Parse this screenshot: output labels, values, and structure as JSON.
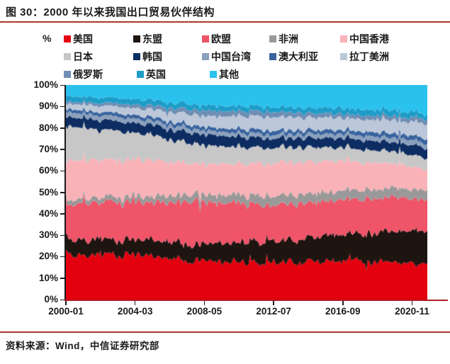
{
  "header": {
    "title": "图 30：2000 年以来我国出口贸易伙伴结构"
  },
  "colors": {
    "rule": "#A63A2E",
    "x_axis": "#B01F22",
    "y_axis": "#1a1a1a",
    "text": "#1a1a1a"
  },
  "footer": {
    "source": "资料来源：Wind，中信证券研究部"
  },
  "chart_data": {
    "type": "area",
    "stacked": true,
    "normalized_percent": true,
    "title": "2000 年以来我国出口贸易伙伴结构",
    "y_unit": "%",
    "ylim": [
      0,
      100
    ],
    "grid": false,
    "legend_position": "top",
    "y_tick_labels": [
      "100%",
      "90%",
      "80%",
      "70%",
      "60%",
      "50%",
      "40%",
      "30%",
      "20%",
      "10%",
      "0%"
    ],
    "x_tick_labels": [
      "2000-01",
      "2004-03",
      "2008-05",
      "2012-07",
      "2016-09",
      "2020-11"
    ],
    "x_tick_months": [
      0,
      50,
      100,
      150,
      200,
      250
    ],
    "x_start": "2000-01",
    "x_end": "2021-10",
    "total_months": 261,
    "keyframe_months": [
      0,
      50,
      100,
      150,
      200,
      250,
      261
    ],
    "keyframe_labels": [
      "2000-01",
      "2004-03",
      "2008-05",
      "2012-07",
      "2016-09",
      "2020-11",
      "2021-10"
    ],
    "series": [
      {
        "name": "美国",
        "color": "#E3000F",
        "values": [
          21.0,
          21.0,
          17.5,
          17.0,
          18.5,
          17.0,
          16.5
        ]
      },
      {
        "name": "东盟",
        "color": "#1E1410",
        "values": [
          7.0,
          7.2,
          8.0,
          10.0,
          12.2,
          15.0,
          15.5
        ]
      },
      {
        "name": "欧盟",
        "color": "#EF5468",
        "values": [
          16.4,
          17.5,
          19.5,
          16.5,
          16.2,
          15.2,
          15.5
        ]
      },
      {
        "name": "非洲",
        "color": "#999999",
        "values": [
          2.0,
          2.6,
          3.6,
          4.2,
          4.2,
          4.4,
          4.5
        ]
      },
      {
        "name": "中国香港",
        "color": "#F9B2B8",
        "values": [
          17.8,
          17.0,
          13.5,
          15.5,
          13.8,
          10.8,
          9.0
        ]
      },
      {
        "name": "日本",
        "color": "#C7C7C7",
        "values": [
          16.3,
          12.5,
          8.3,
          7.4,
          6.1,
          5.5,
          5.0
        ]
      },
      {
        "name": "韩国",
        "color": "#0D2D62",
        "values": [
          4.5,
          4.6,
          5.1,
          4.3,
          4.5,
          4.4,
          4.5
        ]
      },
      {
        "name": "中国台湾",
        "color": "#8BA0BC",
        "values": [
          2.2,
          2.1,
          1.8,
          1.8,
          1.9,
          2.2,
          2.1
        ]
      },
      {
        "name": "澳大利亚",
        "color": "#38639E",
        "values": [
          1.5,
          1.6,
          1.7,
          1.9,
          1.8,
          2.1,
          2.3
        ]
      },
      {
        "name": "拉丁美洲",
        "color": "#BCC8D9",
        "values": [
          2.6,
          3.2,
          5.2,
          6.3,
          5.6,
          6.2,
          7.2
        ]
      },
      {
        "name": "俄罗斯",
        "color": "#6F8DB3",
        "values": [
          1.0,
          1.6,
          2.4,
          2.3,
          1.8,
          2.0,
          2.2
        ]
      },
      {
        "name": "英国",
        "color": "#1E9CC8",
        "values": [
          2.6,
          2.6,
          2.5,
          2.3,
          2.7,
          2.7,
          2.3
        ]
      },
      {
        "name": "其他",
        "color": "#2AC1EE",
        "values": [
          5.1,
          6.5,
          9.0,
          10.5,
          10.7,
          12.5,
          13.4
        ]
      }
    ]
  }
}
